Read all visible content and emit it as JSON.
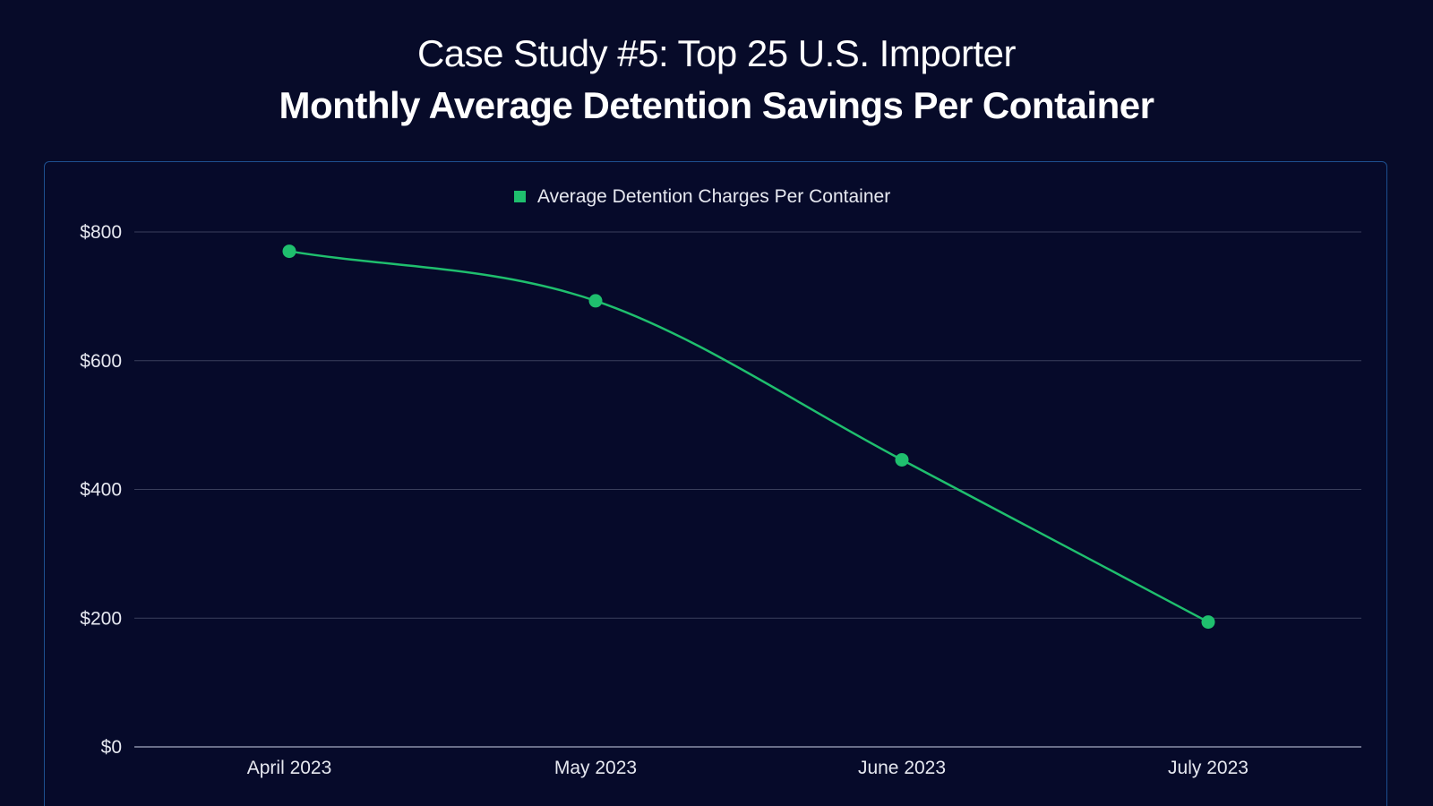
{
  "header": {
    "title": "Case Study #5: Top 25 U.S. Importer",
    "subtitle": "Monthly Average Detention Savings Per Container"
  },
  "colors": {
    "background": "#070b29",
    "panel_border": "#1d4f8f",
    "series": "#1fbf6e",
    "grid": "#3a3f5c",
    "text": "#e6e8f0"
  },
  "chart_data": {
    "type": "line",
    "categories": [
      "April 2023",
      "May 2023",
      "June 2023",
      "July 2023"
    ],
    "series": [
      {
        "name": "Average Detention Charges Per Container",
        "values": [
          770,
          693,
          446,
          194
        ]
      }
    ],
    "ylim": [
      0,
      800
    ],
    "yticks": [
      0,
      200,
      400,
      600,
      800
    ],
    "ytick_labels": [
      "$0",
      "$200",
      "$400",
      "$600",
      "$800"
    ],
    "grid": true,
    "legend_position": "top-center",
    "smooth": true
  }
}
